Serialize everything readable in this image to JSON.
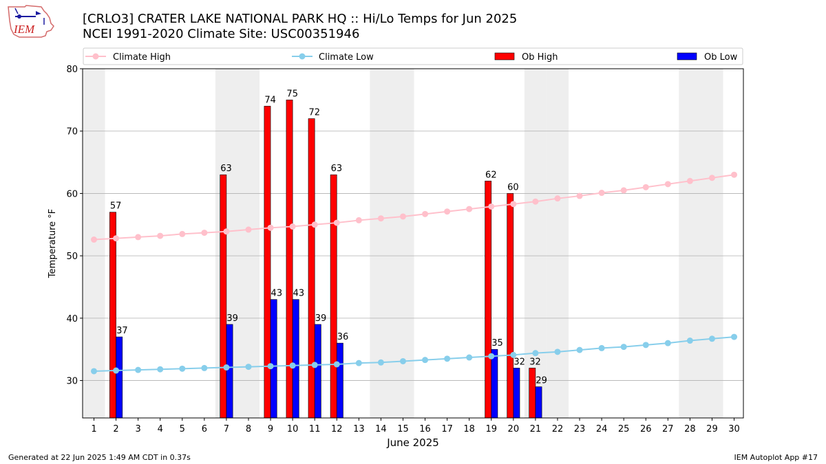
{
  "header": {
    "title_line1": "[CRLO3] CRATER LAKE NATIONAL PARK HQ :: Hi/Lo Temps for Jun 2025",
    "title_line2": "NCEI 1991-2020 Climate Site: USC00351946",
    "logo_text": "IEM"
  },
  "footer": {
    "left": "Generated at 22 Jun 2025 1:49 AM CDT in 0.37s",
    "right": "IEM Autoplot App #17"
  },
  "colors": {
    "ob_high": "#ff0000",
    "ob_low": "#0000ff",
    "climate_high": "#ffc0cb",
    "climate_low": "#87ceeb",
    "weekend_band": "#eeeeee",
    "grid": "#b0b0b0"
  },
  "chart_data": {
    "type": "bar",
    "xlabel": "June 2025",
    "ylabel": "Temperature °F",
    "ylim": [
      24,
      80
    ],
    "yticks": [
      30,
      40,
      50,
      60,
      70,
      80
    ],
    "grid": "horizontal",
    "legend_position": "top",
    "weekend_days": [
      1,
      7,
      8,
      14,
      15,
      21,
      22,
      28,
      29
    ],
    "days": [
      1,
      2,
      3,
      4,
      5,
      6,
      7,
      8,
      9,
      10,
      11,
      12,
      13,
      14,
      15,
      16,
      17,
      18,
      19,
      20,
      21,
      22,
      23,
      24,
      25,
      26,
      27,
      28,
      29,
      30
    ],
    "series": [
      {
        "name": "Climate High",
        "kind": "line",
        "values": [
          52.6,
          52.8,
          53.0,
          53.2,
          53.5,
          53.7,
          53.9,
          54.2,
          54.5,
          54.7,
          55.0,
          55.3,
          55.7,
          56.0,
          56.3,
          56.7,
          57.1,
          57.5,
          57.9,
          58.3,
          58.7,
          59.2,
          59.6,
          60.1,
          60.5,
          61.0,
          61.5,
          62.0,
          62.5,
          63.0
        ]
      },
      {
        "name": "Climate Low",
        "kind": "line",
        "values": [
          31.5,
          31.6,
          31.7,
          31.8,
          31.9,
          32.0,
          32.1,
          32.2,
          32.3,
          32.4,
          32.5,
          32.6,
          32.8,
          32.9,
          33.1,
          33.3,
          33.5,
          33.7,
          33.9,
          34.1,
          34.4,
          34.6,
          34.9,
          35.2,
          35.4,
          35.7,
          36.0,
          36.4,
          36.7,
          37.0
        ]
      },
      {
        "name": "Ob High",
        "kind": "bar",
        "values": [
          null,
          57,
          null,
          null,
          null,
          null,
          63,
          null,
          74,
          75,
          72,
          63,
          null,
          null,
          null,
          null,
          null,
          null,
          62,
          60,
          32,
          null,
          null,
          null,
          null,
          null,
          null,
          null,
          null,
          null
        ]
      },
      {
        "name": "Ob Low",
        "kind": "bar",
        "values": [
          null,
          37,
          null,
          null,
          null,
          null,
          39,
          null,
          43,
          43,
          39,
          36,
          null,
          null,
          null,
          null,
          null,
          null,
          35,
          32,
          29,
          null,
          null,
          null,
          null,
          null,
          null,
          null,
          null,
          null
        ]
      }
    ]
  }
}
